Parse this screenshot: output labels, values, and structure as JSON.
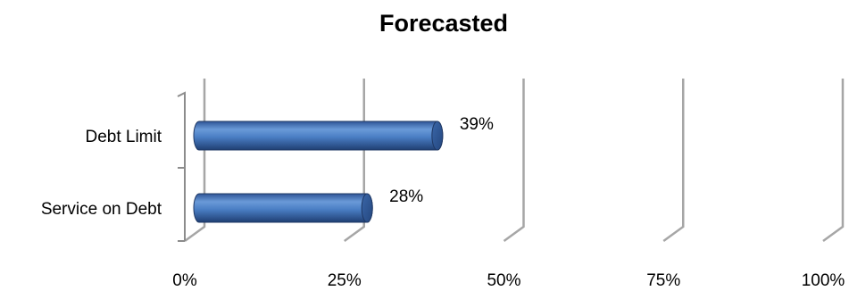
{
  "chart_data": {
    "type": "bar",
    "orientation": "horizontal",
    "title": "Forecasted",
    "categories": [
      "Debt Limit",
      "Service on Debt"
    ],
    "values": [
      39,
      28
    ],
    "data_labels": [
      "39%",
      "28%"
    ],
    "xlim": [
      0,
      100
    ],
    "xticks": [
      0,
      25,
      50,
      75,
      100
    ],
    "xtick_labels": [
      "0%",
      "25%",
      "50%",
      "75%",
      "100%"
    ],
    "xlabel": "",
    "ylabel": "",
    "grid": true,
    "legend": "none",
    "style": "3d-cylinder",
    "bar_color": "#4f81bd"
  }
}
